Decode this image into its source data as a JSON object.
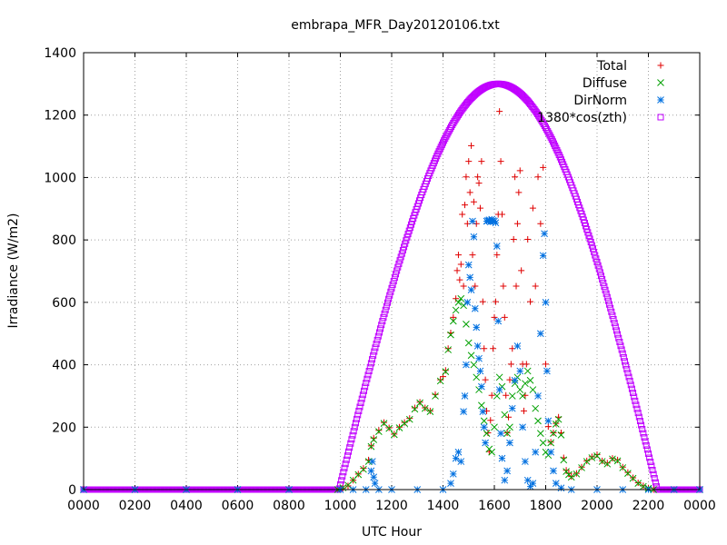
{
  "chart_data": {
    "type": "scatter",
    "title": "embrapa_MFR_Day20120106.txt",
    "xlabel": "UTC Hour",
    "ylabel": "Irradiance (W/m2)",
    "xlim": [
      0,
      24
    ],
    "ylim": [
      0,
      1400
    ],
    "x_ticks": [
      {
        "value": 0,
        "label": "0000"
      },
      {
        "value": 2,
        "label": "0200"
      },
      {
        "value": 4,
        "label": "0400"
      },
      {
        "value": 6,
        "label": "0600"
      },
      {
        "value": 8,
        "label": "0800"
      },
      {
        "value": 10,
        "label": "1000"
      },
      {
        "value": 12,
        "label": "1200"
      },
      {
        "value": 14,
        "label": "1400"
      },
      {
        "value": 16,
        "label": "1600"
      },
      {
        "value": 18,
        "label": "1800"
      },
      {
        "value": 20,
        "label": "2000"
      },
      {
        "value": 22,
        "label": "2200"
      },
      {
        "value": 24,
        "label": "0000"
      }
    ],
    "y_ticks": [
      {
        "value": 0,
        "label": "0"
      },
      {
        "value": 200,
        "label": "200"
      },
      {
        "value": 400,
        "label": "400"
      },
      {
        "value": 600,
        "label": "600"
      },
      {
        "value": 800,
        "label": "800"
      },
      {
        "value": 1000,
        "label": "1000"
      },
      {
        "value": 1200,
        "label": "1200"
      },
      {
        "value": 1400,
        "label": "1400"
      }
    ],
    "grid": true,
    "legend_position": "top-right",
    "series": [
      {
        "name": "Total",
        "marker": "plus",
        "color": "#e00000",
        "points": [
          [
            0,
            0
          ],
          [
            2,
            0
          ],
          [
            4,
            0
          ],
          [
            6,
            0
          ],
          [
            8,
            0
          ],
          [
            9.9,
            0
          ],
          [
            10.1,
            5
          ],
          [
            10.3,
            12
          ],
          [
            10.5,
            30
          ],
          [
            10.7,
            50
          ],
          [
            10.9,
            68
          ],
          [
            11.1,
            95
          ],
          [
            11.2,
            140
          ],
          [
            11.3,
            165
          ],
          [
            11.5,
            190
          ],
          [
            11.7,
            215
          ],
          [
            11.9,
            198
          ],
          [
            12.1,
            178
          ],
          [
            12.3,
            200
          ],
          [
            12.5,
            215
          ],
          [
            12.7,
            228
          ],
          [
            12.9,
            262
          ],
          [
            13.1,
            280
          ],
          [
            13.3,
            262
          ],
          [
            13.5,
            252
          ],
          [
            13.7,
            305
          ],
          [
            13.9,
            352
          ],
          [
            14.0,
            362
          ],
          [
            14.1,
            382
          ],
          [
            14.2,
            452
          ],
          [
            14.3,
            502
          ],
          [
            14.4,
            552
          ],
          [
            14.5,
            612
          ],
          [
            14.55,
            702
          ],
          [
            14.6,
            752
          ],
          [
            14.65,
            672
          ],
          [
            14.7,
            722
          ],
          [
            14.75,
            882
          ],
          [
            14.8,
            652
          ],
          [
            14.85,
            912
          ],
          [
            14.9,
            1002
          ],
          [
            14.95,
            852
          ],
          [
            15.0,
            1052
          ],
          [
            15.05,
            952
          ],
          [
            15.1,
            1102
          ],
          [
            15.15,
            752
          ],
          [
            15.2,
            922
          ],
          [
            15.25,
            652
          ],
          [
            15.3,
            852
          ],
          [
            15.35,
            1002
          ],
          [
            15.4,
            982
          ],
          [
            15.45,
            902
          ],
          [
            15.5,
            1052
          ],
          [
            15.55,
            602
          ],
          [
            15.6,
            452
          ],
          [
            15.65,
            352
          ],
          [
            15.7,
            252
          ],
          [
            15.75,
            182
          ],
          [
            15.8,
            122
          ],
          [
            15.85,
            222
          ],
          [
            15.9,
            302
          ],
          [
            15.95,
            452
          ],
          [
            16.0,
            552
          ],
          [
            16.05,
            602
          ],
          [
            16.1,
            752
          ],
          [
            16.15,
            882
          ],
          [
            16.2,
            1212
          ],
          [
            16.25,
            1052
          ],
          [
            16.3,
            882
          ],
          [
            16.35,
            652
          ],
          [
            16.4,
            552
          ],
          [
            16.45,
            302
          ],
          [
            16.5,
            182
          ],
          [
            16.55,
            232
          ],
          [
            16.6,
            352
          ],
          [
            16.65,
            402
          ],
          [
            16.7,
            452
          ],
          [
            16.75,
            802
          ],
          [
            16.8,
            1002
          ],
          [
            16.85,
            652
          ],
          [
            16.9,
            852
          ],
          [
            16.95,
            952
          ],
          [
            17.0,
            1022
          ],
          [
            17.05,
            702
          ],
          [
            17.1,
            402
          ],
          [
            17.15,
            252
          ],
          [
            17.2,
            302
          ],
          [
            17.25,
            402
          ],
          [
            17.3,
            802
          ],
          [
            17.4,
            602
          ],
          [
            17.5,
            902
          ],
          [
            17.6,
            652
          ],
          [
            17.7,
            1002
          ],
          [
            17.8,
            852
          ],
          [
            17.9,
            1032
          ],
          [
            18.0,
            402
          ],
          [
            18.1,
            202
          ],
          [
            18.2,
            152
          ],
          [
            18.3,
            182
          ],
          [
            18.4,
            212
          ],
          [
            18.5,
            232
          ],
          [
            18.6,
            182
          ],
          [
            18.7,
            102
          ],
          [
            18.8,
            62
          ],
          [
            18.9,
            52
          ],
          [
            19.0,
            42
          ],
          [
            19.2,
            52
          ],
          [
            19.4,
            72
          ],
          [
            19.6,
            92
          ],
          [
            19.8,
            105
          ],
          [
            20.0,
            112
          ],
          [
            20.2,
            92
          ],
          [
            20.4,
            85
          ],
          [
            20.6,
            100
          ],
          [
            20.8,
            95
          ],
          [
            21.0,
            72
          ],
          [
            21.2,
            55
          ],
          [
            21.4,
            38
          ],
          [
            21.6,
            22
          ],
          [
            21.8,
            12
          ],
          [
            22.0,
            5
          ],
          [
            22.2,
            0
          ],
          [
            23,
            0
          ],
          [
            24,
            0
          ]
        ]
      },
      {
        "name": "Diffuse",
        "marker": "cross",
        "color": "#00a000",
        "points": [
          [
            0,
            0
          ],
          [
            2,
            0
          ],
          [
            4,
            0
          ],
          [
            6,
            0
          ],
          [
            8,
            0
          ],
          [
            9.9,
            0
          ],
          [
            10.1,
            6
          ],
          [
            10.3,
            14
          ],
          [
            10.5,
            30
          ],
          [
            10.7,
            48
          ],
          [
            10.9,
            65
          ],
          [
            11.1,
            90
          ],
          [
            11.2,
            138
          ],
          [
            11.3,
            160
          ],
          [
            11.5,
            186
          ],
          [
            11.7,
            212
          ],
          [
            11.9,
            196
          ],
          [
            12.1,
            176
          ],
          [
            12.3,
            198
          ],
          [
            12.5,
            212
          ],
          [
            12.7,
            225
          ],
          [
            12.9,
            258
          ],
          [
            13.1,
            278
          ],
          [
            13.3,
            260
          ],
          [
            13.5,
            250
          ],
          [
            13.7,
            300
          ],
          [
            13.9,
            348
          ],
          [
            14.1,
            378
          ],
          [
            14.2,
            448
          ],
          [
            14.3,
            496
          ],
          [
            14.4,
            540
          ],
          [
            14.5,
            575
          ],
          [
            14.6,
            600
          ],
          [
            14.7,
            612
          ],
          [
            14.8,
            590
          ],
          [
            14.9,
            530
          ],
          [
            15.0,
            470
          ],
          [
            15.1,
            430
          ],
          [
            15.2,
            400
          ],
          [
            15.3,
            360
          ],
          [
            15.4,
            320
          ],
          [
            15.5,
            270
          ],
          [
            15.6,
            220
          ],
          [
            15.7,
            180
          ],
          [
            15.8,
            130
          ],
          [
            15.9,
            120
          ],
          [
            16.0,
            200
          ],
          [
            16.1,
            300
          ],
          [
            16.2,
            360
          ],
          [
            16.3,
            330
          ],
          [
            16.4,
            240
          ],
          [
            16.5,
            180
          ],
          [
            16.6,
            200
          ],
          [
            16.7,
            300
          ],
          [
            16.8,
            340
          ],
          [
            16.9,
            360
          ],
          [
            17.0,
            320
          ],
          [
            17.1,
            300
          ],
          [
            17.2,
            340
          ],
          [
            17.3,
            380
          ],
          [
            17.4,
            350
          ],
          [
            17.5,
            320
          ],
          [
            17.6,
            260
          ],
          [
            17.7,
            220
          ],
          [
            17.8,
            180
          ],
          [
            17.9,
            150
          ],
          [
            18.0,
            120
          ],
          [
            18.1,
            110
          ],
          [
            18.2,
            150
          ],
          [
            18.3,
            180
          ],
          [
            18.4,
            210
          ],
          [
            18.5,
            225
          ],
          [
            18.6,
            175
          ],
          [
            18.7,
            95
          ],
          [
            18.8,
            58
          ],
          [
            18.9,
            48
          ],
          [
            19.0,
            40
          ],
          [
            19.2,
            50
          ],
          [
            19.4,
            70
          ],
          [
            19.6,
            90
          ],
          [
            19.8,
            102
          ],
          [
            20.0,
            108
          ],
          [
            20.2,
            90
          ],
          [
            20.4,
            82
          ],
          [
            20.6,
            98
          ],
          [
            20.8,
            92
          ],
          [
            21.0,
            70
          ],
          [
            21.2,
            52
          ],
          [
            21.4,
            36
          ],
          [
            21.6,
            20
          ],
          [
            21.8,
            10
          ],
          [
            22.0,
            4
          ],
          [
            22.2,
            0
          ],
          [
            23,
            0
          ],
          [
            24,
            0
          ]
        ]
      },
      {
        "name": "DirNorm",
        "marker": "star",
        "color": "#0070e0",
        "points": [
          [
            0,
            0
          ],
          [
            2,
            0
          ],
          [
            4,
            0
          ],
          [
            6,
            0
          ],
          [
            8,
            0
          ],
          [
            10,
            0
          ],
          [
            10.5,
            0
          ],
          [
            11,
            0
          ],
          [
            11.2,
            60
          ],
          [
            11.25,
            90
          ],
          [
            11.3,
            40
          ],
          [
            11.35,
            20
          ],
          [
            11.5,
            0
          ],
          [
            12,
            0
          ],
          [
            13,
            0
          ],
          [
            14,
            0
          ],
          [
            14.3,
            20
          ],
          [
            14.4,
            50
          ],
          [
            14.5,
            100
          ],
          [
            14.6,
            120
          ],
          [
            14.7,
            90
          ],
          [
            14.8,
            250
          ],
          [
            14.85,
            300
          ],
          [
            14.9,
            400
          ],
          [
            14.95,
            600
          ],
          [
            15.0,
            720
          ],
          [
            15.05,
            680
          ],
          [
            15.1,
            640
          ],
          [
            15.15,
            860
          ],
          [
            15.2,
            810
          ],
          [
            15.25,
            580
          ],
          [
            15.3,
            520
          ],
          [
            15.35,
            460
          ],
          [
            15.4,
            420
          ],
          [
            15.45,
            380
          ],
          [
            15.5,
            330
          ],
          [
            15.55,
            250
          ],
          [
            15.6,
            200
          ],
          [
            15.65,
            150
          ],
          [
            15.7,
            860
          ],
          [
            15.75,
            862
          ],
          [
            15.8,
            864
          ],
          [
            15.85,
            858
          ],
          [
            15.9,
            866
          ],
          [
            15.95,
            862
          ],
          [
            16.0,
            860
          ],
          [
            16.05,
            855
          ],
          [
            16.1,
            780
          ],
          [
            16.15,
            540
          ],
          [
            16.2,
            320
          ],
          [
            16.25,
            180
          ],
          [
            16.3,
            100
          ],
          [
            16.4,
            30
          ],
          [
            16.5,
            60
          ],
          [
            16.6,
            150
          ],
          [
            16.7,
            260
          ],
          [
            16.8,
            350
          ],
          [
            16.9,
            460
          ],
          [
            17.0,
            380
          ],
          [
            17.1,
            200
          ],
          [
            17.2,
            90
          ],
          [
            17.3,
            30
          ],
          [
            17.4,
            10
          ],
          [
            17.5,
            20
          ],
          [
            17.6,
            120
          ],
          [
            17.7,
            300
          ],
          [
            17.8,
            500
          ],
          [
            17.9,
            750
          ],
          [
            17.95,
            820
          ],
          [
            18.0,
            600
          ],
          [
            18.05,
            380
          ],
          [
            18.1,
            220
          ],
          [
            18.2,
            120
          ],
          [
            18.3,
            60
          ],
          [
            18.4,
            20
          ],
          [
            18.6,
            5
          ],
          [
            19,
            0
          ],
          [
            20,
            0
          ],
          [
            21,
            0
          ],
          [
            22,
            0
          ],
          [
            23,
            0
          ],
          [
            24,
            0
          ]
        ]
      },
      {
        "name": "1380*cos(zth)",
        "marker": "square",
        "color": "#c000ff",
        "curve": {
          "rise": 9.95,
          "set": 22.35,
          "peak_x": 16.15,
          "peak_y": 1300,
          "step": 0.04
        }
      }
    ]
  }
}
